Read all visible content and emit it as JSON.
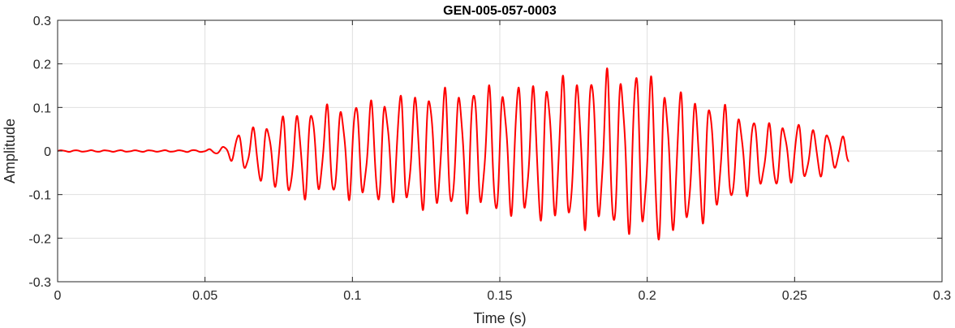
{
  "chart_data": {
    "type": "line",
    "title": "GEN-005-057-0003",
    "xlabel": "Time (s)",
    "ylabel": "Amplitude",
    "xlim": [
      0,
      0.3
    ],
    "ylim": [
      -0.3,
      0.3
    ],
    "x_ticks": [
      0,
      0.05,
      0.1,
      0.15,
      0.2,
      0.25,
      0.3
    ],
    "x_tick_labels": [
      "0",
      "0.05",
      "0.1",
      "0.15",
      "0.2",
      "0.25",
      "0.3"
    ],
    "y_ticks": [
      -0.3,
      -0.2,
      -0.1,
      0,
      0.1,
      0.2,
      0.3
    ],
    "y_tick_labels": [
      "-0.3",
      "-0.2",
      "-0.1",
      "0",
      "0.1",
      "0.2",
      "0.3"
    ],
    "grid": true,
    "legend": "none",
    "series": [
      {
        "color": "#ff0000",
        "x": [
          0,
          0.01,
          0.02,
          0.03,
          0.04,
          0.05,
          0.055,
          0.058,
          0.06,
          0.065,
          0.07,
          0.075,
          0.08,
          0.09,
          0.1,
          0.11,
          0.12,
          0.13,
          0.14,
          0.15,
          0.16,
          0.17,
          0.18,
          0.19,
          0.2,
          0.205,
          0.21,
          0.22,
          0.23,
          0.24,
          0.25,
          0.26,
          0.2685
        ],
        "envelope_max": [
          0.002,
          0.002,
          0.002,
          0.002,
          0.002,
          0.003,
          0.008,
          0.02,
          0.035,
          0.06,
          0.065,
          0.08,
          0.1,
          0.11,
          0.12,
          0.13,
          0.145,
          0.15,
          0.16,
          0.16,
          0.17,
          0.18,
          0.195,
          0.2,
          0.2,
          0.17,
          0.15,
          0.13,
          0.1,
          0.07,
          0.07,
          0.05,
          0.03
        ],
        "envelope_min": [
          -0.002,
          -0.002,
          -0.002,
          -0.002,
          -0.002,
          -0.003,
          -0.008,
          -0.02,
          -0.03,
          -0.06,
          -0.08,
          -0.1,
          -0.12,
          -0.11,
          -0.12,
          -0.13,
          -0.14,
          -0.15,
          -0.15,
          -0.16,
          -0.17,
          -0.18,
          -0.19,
          -0.2,
          -0.21,
          -0.23,
          -0.2,
          -0.17,
          -0.12,
          -0.09,
          -0.08,
          -0.06,
          -0.03
        ],
        "frequency_hz": 200
      }
    ]
  }
}
